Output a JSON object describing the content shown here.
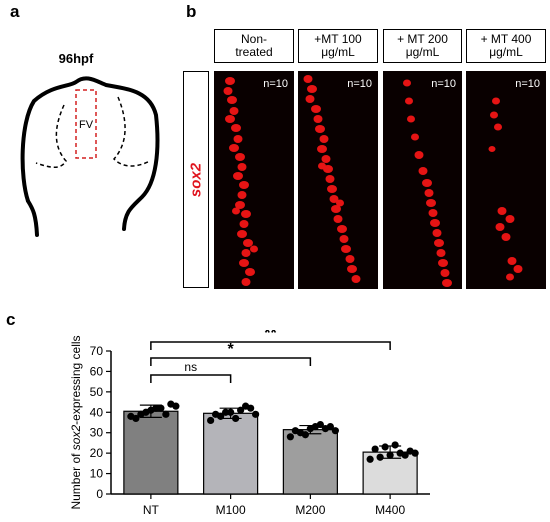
{
  "panel_labels": {
    "a": "a",
    "b": "b",
    "c": "c"
  },
  "panel_a": {
    "stage": "96hpf",
    "region": "FV"
  },
  "panel_b": {
    "row_label": "sox2",
    "columns": [
      {
        "header": "Non-\ntreated",
        "n": "n=10"
      },
      {
        "header": "+MT 100\nμg/mL",
        "n": "n=10"
      },
      {
        "header": "+ MT 200\nμg/mL",
        "n": "n=10"
      },
      {
        "header": "+ MT 400\nμg/mL",
        "n": "n=10"
      }
    ]
  },
  "chart_data": {
    "type": "bar",
    "ylabel": "Number of sox2-expressing cells",
    "categories": [
      "NT",
      "M100",
      "M200",
      "M400"
    ],
    "values": [
      40.5,
      39.5,
      31.5,
      20.5
    ],
    "error": [
      3.0,
      2.5,
      2.0,
      3.0
    ],
    "points": [
      [
        38,
        39,
        41,
        42,
        44,
        37,
        40,
        42,
        39,
        43
      ],
      [
        36,
        38,
        40,
        41,
        42,
        39,
        40,
        37,
        43,
        39
      ],
      [
        28,
        30,
        32,
        34,
        33,
        31,
        29,
        33,
        32,
        31
      ],
      [
        17,
        18,
        19,
        20,
        21,
        22,
        23,
        24,
        19,
        20
      ]
    ],
    "ylim": [
      0,
      70
    ],
    "yticks": [
      0,
      10,
      20,
      30,
      40,
      50,
      60,
      70
    ],
    "colors": [
      "#808080",
      "#b4b4b9",
      "#9e9e9e",
      "#dcdcdc"
    ],
    "significance": [
      {
        "from": "NT",
        "to": "M100",
        "label": "ns"
      },
      {
        "from": "NT",
        "to": "M200",
        "label": "*"
      },
      {
        "from": "NT",
        "to": "M400",
        "label": "**"
      }
    ]
  }
}
